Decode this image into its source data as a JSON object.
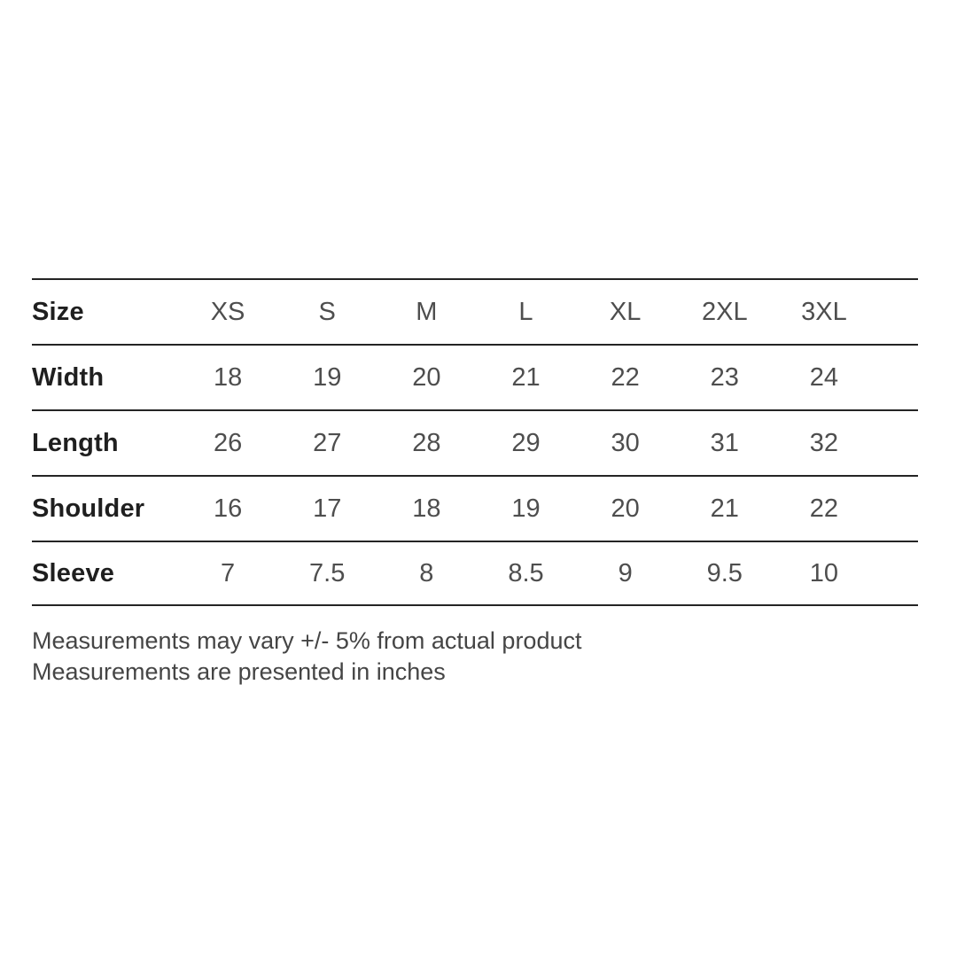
{
  "chart_data": {
    "type": "table",
    "title": "",
    "header": {
      "label": "Size",
      "cells": [
        "XS",
        "S",
        "M",
        "L",
        "XL",
        "2XL",
        "3XL"
      ]
    },
    "rows": [
      {
        "label": "Width",
        "cells": [
          "18",
          "19",
          "20",
          "21",
          "22",
          "23",
          "24"
        ]
      },
      {
        "label": "Length",
        "cells": [
          "26",
          "27",
          "28",
          "29",
          "30",
          "31",
          "32"
        ]
      },
      {
        "label": "Shoulder",
        "cells": [
          "16",
          "17",
          "18",
          "19",
          "20",
          "21",
          "22"
        ]
      },
      {
        "label": "Sleeve",
        "cells": [
          "7",
          "7.5",
          "8",
          "8.5",
          "9",
          "9.5",
          "10"
        ]
      }
    ],
    "notes": [
      "Measurements may vary +/- 5% from actual product",
      "Measurements are presented in inches"
    ],
    "layout": {
      "grid": "horizontal-rules-only",
      "units": "inches"
    }
  },
  "colors": {
    "background": "#ffffff",
    "rule_line": "#242424",
    "row_label_text": "#1f1f1f",
    "value_text": "#4e4e4e",
    "note_text": "#454545"
  }
}
